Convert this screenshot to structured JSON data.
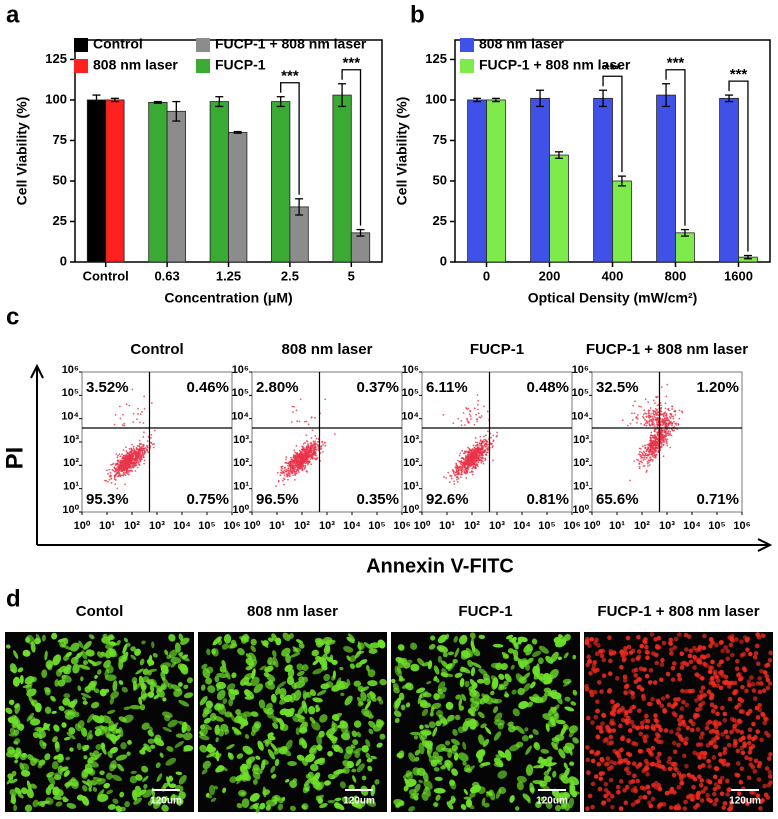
{
  "panel_labels": [
    "a",
    "b",
    "c",
    "d"
  ],
  "chart_data": [
    {
      "type": "bar",
      "categories": [
        "Control",
        "0.63",
        "1.25",
        "2.5",
        "5"
      ],
      "x_label": "Concentration (μM)",
      "y_label": "Cell Viability (%)",
      "ylim": [
        0,
        137
      ],
      "yticks": [
        0,
        25,
        50,
        75,
        100,
        125
      ],
      "series": [
        {
          "name": "Control",
          "color": "#000000",
          "values": [
            100,
            null,
            null,
            null,
            null
          ],
          "errors": [
            3,
            null,
            null,
            null,
            null
          ]
        },
        {
          "name": "808 nm laser",
          "color": "#ff2020",
          "values": [
            100,
            null,
            null,
            null,
            null
          ],
          "errors": [
            1,
            null,
            null,
            null,
            null
          ]
        },
        {
          "name": "FUCP-1",
          "color": "#3aaa35",
          "values": [
            null,
            98.5,
            99,
            99,
            103
          ],
          "errors": [
            null,
            0.5,
            3,
            3,
            7
          ]
        },
        {
          "name": "FUCP-1 + 808 nm laser",
          "color": "#8c8c8c",
          "values": [
            null,
            93,
            80,
            34,
            18
          ],
          "errors": [
            null,
            6,
            0.5,
            5,
            2
          ]
        }
      ],
      "annotations": [
        {
          "text": "***",
          "category": "2.5"
        },
        {
          "text": "***",
          "category": "5"
        }
      ]
    },
    {
      "type": "bar",
      "categories": [
        "0",
        "200",
        "400",
        "800",
        "1600"
      ],
      "x_label": "Optical Density (mW/cm²)",
      "y_label": "Cell Viability (%)",
      "ylim": [
        0,
        137
      ],
      "yticks": [
        0,
        25,
        50,
        75,
        100,
        125
      ],
      "series": [
        {
          "name": "808 nm laser",
          "color": "#3f51e6",
          "values": [
            100,
            101,
            101,
            103,
            101
          ],
          "errors": [
            1,
            5,
            5,
            7,
            2
          ]
        },
        {
          "name": "FUCP-1 + 808 nm laser",
          "color": "#7fea4c",
          "values": [
            100,
            66,
            50,
            18,
            3
          ],
          "errors": [
            1,
            2,
            3,
            2,
            1
          ]
        }
      ],
      "annotations": [
        {
          "text": "***",
          "category": "400"
        },
        {
          "text": "***",
          "category": "800"
        },
        {
          "text": "***",
          "category": "1600"
        }
      ]
    }
  ],
  "panel_c": {
    "x_label": "Annexin V-FITC",
    "y_label": "PI",
    "ticks": [
      {
        "value": 1,
        "label": "10⁰"
      },
      {
        "value": 10,
        "label": "10¹"
      },
      {
        "value": 100,
        "label": "10²"
      },
      {
        "value": 1000,
        "label": "10³"
      },
      {
        "value": 10000,
        "label": "10⁴"
      },
      {
        "value": 100000,
        "label": "10⁵"
      },
      {
        "value": 1000000,
        "label": "10⁶"
      }
    ],
    "plots": [
      {
        "title": "Control",
        "upper_left": "3.52%",
        "upper_right": "0.46%",
        "lower_left": "95.3%",
        "lower_right": "0.75%"
      },
      {
        "title": "808 nm laser",
        "upper_left": "2.80%",
        "upper_right": "0.37%",
        "lower_left": "96.5%",
        "lower_right": "0.35%"
      },
      {
        "title": "FUCP-1",
        "upper_left": "6.11%",
        "upper_right": "0.48%",
        "lower_left": "92.6%",
        "lower_right": "0.81%"
      },
      {
        "title": "FUCP-1 + 808 nm laser",
        "upper_left": "32.5%",
        "upper_right": "1.20%",
        "lower_left": "65.6%",
        "lower_right": "0.71%"
      }
    ]
  },
  "panel_d": {
    "images": [
      {
        "title": "Contol",
        "scale_bar": "120um"
      },
      {
        "title": "808 nm laser",
        "scale_bar": "120um"
      },
      {
        "title": "FUCP-1",
        "scale_bar": "120um"
      },
      {
        "title": "FUCP-1 + 808 nm laser",
        "scale_bar": "120um"
      }
    ]
  }
}
